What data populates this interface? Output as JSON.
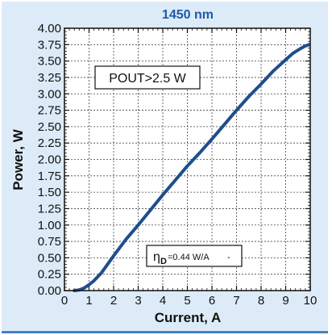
{
  "chart_data": {
    "type": "line",
    "title": "1450 nm",
    "xlabel": "Current, A",
    "ylabel": "Power, W",
    "xlim": [
      0,
      10
    ],
    "ylim": [
      0,
      4
    ],
    "xticks": [
      "0",
      "1",
      "2",
      "3",
      "4",
      "5",
      "6",
      "7",
      "8",
      "9",
      "10"
    ],
    "yticks": [
      "0.00",
      "0.25",
      "0.50",
      "0.75",
      "1.00",
      "1.25",
      "1.50",
      "1.75",
      "2.00",
      "2.25",
      "2.50",
      "2.75",
      "3.00",
      "3.25",
      "3.50",
      "3.75",
      "4.00"
    ],
    "grid": true,
    "series": [
      {
        "color": "#1f4e8c",
        "x": [
          0.4,
          0.6,
          0.8,
          1.0,
          1.2,
          1.5,
          2.0,
          2.5,
          3.0,
          3.5,
          4.0,
          4.5,
          5.0,
          5.5,
          6.0,
          6.5,
          7.0,
          7.5,
          8.0,
          8.5,
          9.0,
          9.3,
          9.6,
          9.8,
          9.95
        ],
        "y": [
          0.0,
          0.01,
          0.04,
          0.09,
          0.15,
          0.27,
          0.53,
          0.78,
          1.0,
          1.23,
          1.46,
          1.68,
          1.9,
          2.1,
          2.31,
          2.53,
          2.75,
          2.96,
          3.15,
          3.35,
          3.52,
          3.62,
          3.69,
          3.73,
          3.75
        ]
      }
    ],
    "annotations": {
      "pout_box": "POUT>2.5 W",
      "eta_symbol": "η",
      "eta_subscript": "D",
      "eta_value": "=0.44 W/A",
      "eta_suffix": "-"
    }
  }
}
